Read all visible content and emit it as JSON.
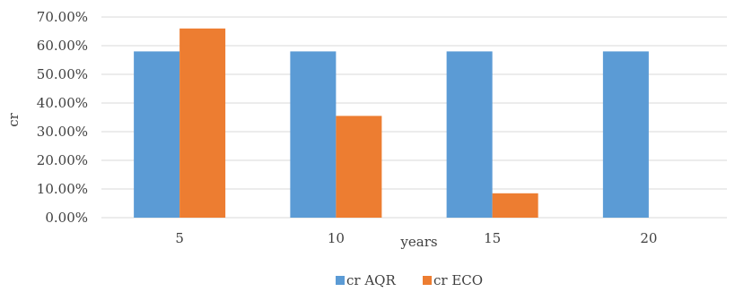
{
  "chart_data": {
    "type": "bar",
    "categories": [
      "5",
      "10",
      "15",
      "20"
    ],
    "series": [
      {
        "name": "cr AQR",
        "color": "#5B9BD5",
        "values": [
          0.58,
          0.58,
          0.58,
          0.58
        ]
      },
      {
        "name": "cr ECO",
        "color": "#ED7D31",
        "values": [
          0.66,
          0.355,
          0.085,
          0
        ]
      }
    ],
    "xlabel": "years",
    "ylabel": "cr",
    "ylim": [
      0,
      0.7
    ],
    "yticks": [
      "0.00%",
      "10.00%",
      "20.00%",
      "30.00%",
      "40.00%",
      "50.00%",
      "60.00%",
      "70.00%"
    ],
    "grid": true,
    "legend_position": "bottom"
  }
}
